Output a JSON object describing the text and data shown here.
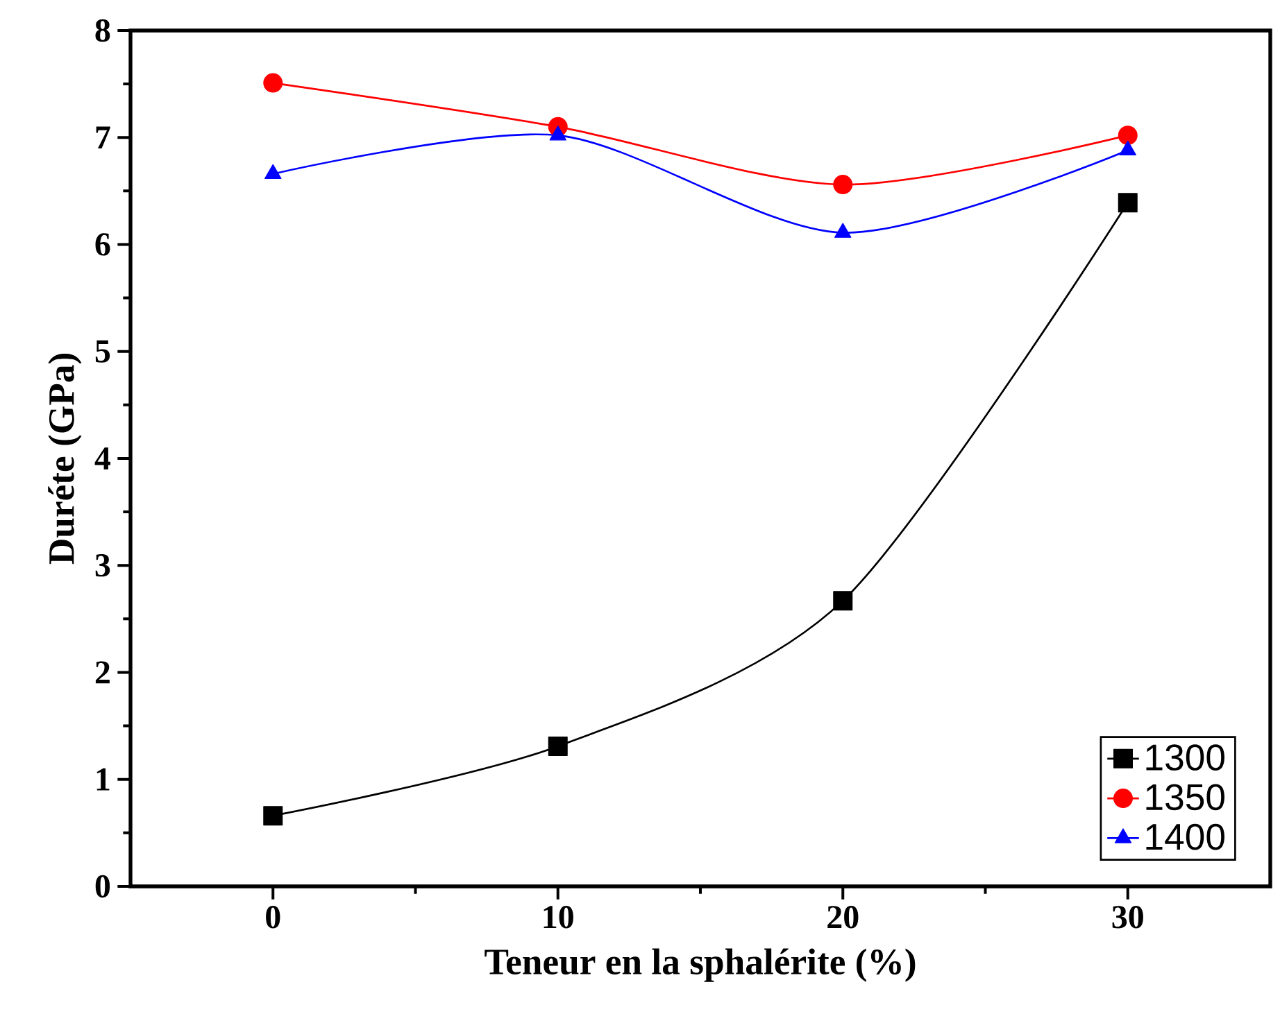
{
  "chart_data": {
    "type": "line",
    "xlabel": "Teneur en la sphalérite (%)",
    "ylabel": "Duréte (GPa)",
    "x": [
      0,
      10,
      20,
      30
    ],
    "series": [
      {
        "name": "1300",
        "color": "#000000",
        "marker": "square",
        "values": [
          0.66,
          1.31,
          2.67,
          6.39
        ]
      },
      {
        "name": "1350",
        "color": "#ff0000",
        "marker": "circle",
        "values": [
          7.51,
          7.1,
          6.56,
          7.02
        ]
      },
      {
        "name": "1400",
        "color": "#0000ff",
        "marker": "triangle",
        "values": [
          6.66,
          7.02,
          6.11,
          6.88
        ]
      }
    ],
    "xlim": [
      -5,
      35
    ],
    "xticks": [
      0,
      10,
      20,
      30
    ],
    "ylim": [
      0,
      8
    ],
    "yticks": [
      0,
      1,
      2,
      3,
      4,
      5,
      6,
      7,
      8
    ],
    "legend": "bottom right",
    "grid": false
  }
}
